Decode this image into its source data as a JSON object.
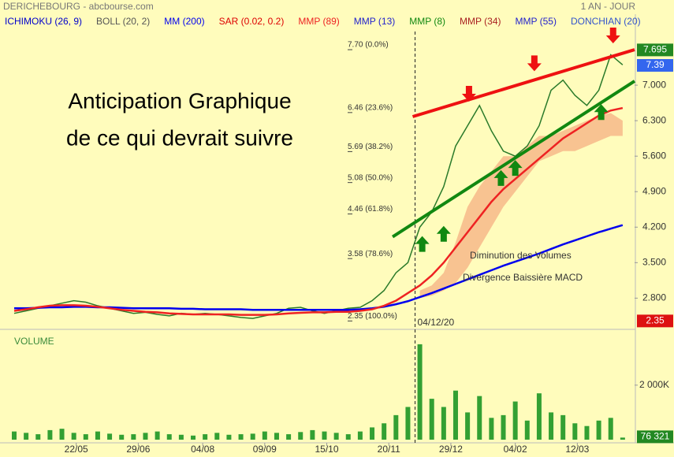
{
  "chart_data": {
    "type": "line",
    "title": "DERICHEBOURG - abcbourse.com",
    "period": "1 AN - JOUR",
    "legend": [
      {
        "name": "ICHIMOKU (26, 9)",
        "color": "#0000cc"
      },
      {
        "name": "BOLL (20, 2)",
        "color": "#555555"
      },
      {
        "name": "MM (200)",
        "color": "#0000ee"
      },
      {
        "name": "SAR (0.02, 0.2)",
        "color": "#dd0000"
      },
      {
        "name": "MMP (89)",
        "color": "#ee2222"
      },
      {
        "name": "MMP (13)",
        "color": "#2222cc"
      },
      {
        "name": "MMP (8)",
        "color": "#118811"
      },
      {
        "name": "MMP (34)",
        "color": "#aa2222"
      },
      {
        "name": "MMP (55)",
        "color": "#2222cc"
      },
      {
        "name": "DONCHIAN (20)",
        "color": "#3355cc"
      }
    ],
    "headline": [
      "Anticipation Graphique",
      "de ce qui devrait suivre"
    ],
    "annotations": [
      "Diminution des Volumes",
      "Divergence Baissière MACD"
    ],
    "x": [
      0,
      5,
      10,
      15,
      20,
      25,
      30,
      35,
      40,
      45,
      50,
      55,
      60,
      65,
      70,
      75,
      80,
      85,
      90,
      95,
      100,
      105,
      110,
      115,
      120,
      125,
      130,
      135,
      140,
      145,
      150,
      155,
      160,
      165,
      170,
      175,
      180,
      185,
      190,
      195,
      200,
      205,
      210,
      215,
      220,
      225,
      230,
      235,
      240,
      245,
      250,
      255
    ],
    "xlim": [
      0,
      260
    ],
    "xticks": [
      {
        "value": 26,
        "label": "22/05"
      },
      {
        "value": 52,
        "label": "29/06"
      },
      {
        "value": 79,
        "label": "04/08"
      },
      {
        "value": 105,
        "label": "09/09"
      },
      {
        "value": 131,
        "label": "15/10"
      },
      {
        "value": 157,
        "label": "20/11"
      },
      {
        "value": 183,
        "label": "29/12"
      },
      {
        "value": 210,
        "label": "04/02"
      },
      {
        "value": 236,
        "label": "12/03"
      }
    ],
    "ylim": [
      2.2,
      8.4
    ],
    "yticks": [
      {
        "value": 7,
        "label": "7.000"
      },
      {
        "value": 6.3,
        "label": "6.300"
      },
      {
        "value": 5.6,
        "label": "5.600"
      },
      {
        "value": 4.9,
        "label": "4.900"
      },
      {
        "value": 4.2,
        "label": "4.200"
      },
      {
        "value": 3.5,
        "label": "3.500"
      },
      {
        "value": 2.8,
        "label": "2.800"
      }
    ],
    "series": [
      {
        "color": "#2a7a2a",
        "values": [
          2.5,
          2.55,
          2.6,
          2.65,
          2.7,
          2.75,
          2.72,
          2.65,
          2.6,
          2.55,
          2.5,
          2.52,
          2.48,
          2.45,
          2.5,
          2.48,
          2.5,
          2.48,
          2.45,
          2.42,
          2.4,
          2.45,
          2.5,
          2.6,
          2.62,
          2.55,
          2.5,
          2.55,
          2.6,
          2.62,
          2.75,
          2.95,
          3.3,
          3.5,
          4.2,
          4.5,
          5.0,
          5.8,
          6.2,
          6.6,
          6.1,
          5.7,
          5.6,
          5.8,
          6.2,
          6.9,
          7.1,
          6.8,
          6.6,
          6.9,
          7.6,
          7.4
        ]
      },
      {
        "color": "#0000ee",
        "values": [
          2.6,
          2.6,
          2.61,
          2.62,
          2.62,
          2.63,
          2.63,
          2.62,
          2.62,
          2.61,
          2.6,
          2.6,
          2.6,
          2.6,
          2.59,
          2.59,
          2.58,
          2.58,
          2.58,
          2.58,
          2.57,
          2.57,
          2.57,
          2.57,
          2.57,
          2.57,
          2.57,
          2.57,
          2.57,
          2.58,
          2.6,
          2.63,
          2.68,
          2.74,
          2.82,
          2.9,
          2.99,
          3.08,
          3.17,
          3.26,
          3.35,
          3.44,
          3.52,
          3.6,
          3.68,
          3.77,
          3.86,
          3.94,
          4.02,
          4.1,
          4.17,
          4.24
        ]
      },
      {
        "color": "#ee2222",
        "values": [
          2.55,
          2.58,
          2.62,
          2.65,
          2.66,
          2.66,
          2.65,
          2.63,
          2.6,
          2.57,
          2.55,
          2.53,
          2.52,
          2.5,
          2.49,
          2.48,
          2.48,
          2.48,
          2.48,
          2.47,
          2.47,
          2.47,
          2.48,
          2.5,
          2.51,
          2.52,
          2.52,
          2.53,
          2.53,
          2.55,
          2.58,
          2.65,
          2.75,
          2.9,
          3.05,
          3.25,
          3.5,
          3.8,
          4.1,
          4.4,
          4.7,
          4.95,
          5.15,
          5.35,
          5.55,
          5.75,
          5.95,
          6.1,
          6.25,
          6.4,
          6.5,
          6.55
        ]
      }
    ],
    "cloud": {
      "color": "#f7b98a",
      "x": [
        170,
        175,
        180,
        185,
        190,
        195,
        200,
        205,
        210,
        215,
        220,
        225,
        230,
        235,
        240,
        245,
        250,
        255
      ],
      "upper": [
        2.95,
        3.05,
        3.3,
        3.9,
        4.6,
        5.0,
        5.3,
        5.6,
        5.6,
        5.8,
        6.0,
        6.0,
        6.1,
        6.2,
        6.3,
        6.4,
        6.45,
        6.3
      ],
      "lower": [
        2.8,
        2.85,
        2.95,
        3.1,
        3.4,
        3.8,
        4.2,
        4.6,
        4.9,
        5.2,
        5.5,
        5.6,
        5.7,
        5.7,
        5.8,
        5.9,
        6.0,
        6.0
      ]
    },
    "fibonacci": [
      {
        "value": 7.7,
        "label": "7.70 (0.0%)"
      },
      {
        "value": 6.46,
        "label": "6.46 (23.6%)"
      },
      {
        "value": 5.69,
        "label": "5.69 (38.2%)"
      },
      {
        "value": 5.08,
        "label": "5.08 (50.0%)"
      },
      {
        "value": 4.46,
        "label": "4.46 (61.8%)"
      },
      {
        "value": 3.58,
        "label": "3.58 (78.6%)"
      },
      {
        "value": 2.35,
        "label": "2.35 (100.0%)"
      }
    ],
    "trendlines": [
      {
        "color": "#ee1111",
        "x": [
          167,
          260
        ],
        "y": [
          6.38,
          7.7
        ]
      },
      {
        "color": "#118811",
        "x": [
          158.6,
          260
        ],
        "y": [
          4.01,
          7.08
        ]
      }
    ],
    "signals": [
      {
        "color": "#ee1111",
        "x": [
          190.6,
          218,
          251
        ],
        "y": [
          6.8,
          7.4,
          7.95
        ]
      },
      {
        "color": "#118811",
        "x": [
          171,
          180,
          204,
          210,
          246
        ],
        "y": [
          3.9,
          4.1,
          5.2,
          5.4,
          6.5
        ]
      }
    ],
    "marker": {
      "x": 168,
      "label": "04/12/20"
    },
    "price_labels": [
      {
        "value": 7.695,
        "color": "#228822"
      },
      {
        "value": 7.39,
        "color": "#3366ee"
      },
      {
        "value": 2.35,
        "color": "#dd1111"
      }
    ],
    "volume": {
      "label": "VOLUME",
      "color": "#33a033",
      "values": [
        300000,
        250000,
        200000,
        350000,
        400000,
        250000,
        200000,
        300000,
        220000,
        180000,
        200000,
        250000,
        300000,
        200000,
        180000,
        150000,
        200000,
        250000,
        180000,
        200000,
        220000,
        300000,
        250000,
        200000,
        280000,
        350000,
        300000,
        250000,
        200000,
        300000,
        450000,
        600000,
        900000,
        1200000,
        3500000,
        1500000,
        1200000,
        1800000,
        1000000,
        1600000,
        800000,
        900000,
        1400000,
        700000,
        1700000,
        1000000,
        900000,
        600000,
        500000,
        700000,
        800000,
        76321
      ],
      "ylim": [
        0,
        3700000
      ],
      "yticks": [
        {
          "value": 2000000,
          "label": "2 000K"
        }
      ],
      "last": {
        "value": 76321,
        "label": "76 321"
      }
    }
  }
}
